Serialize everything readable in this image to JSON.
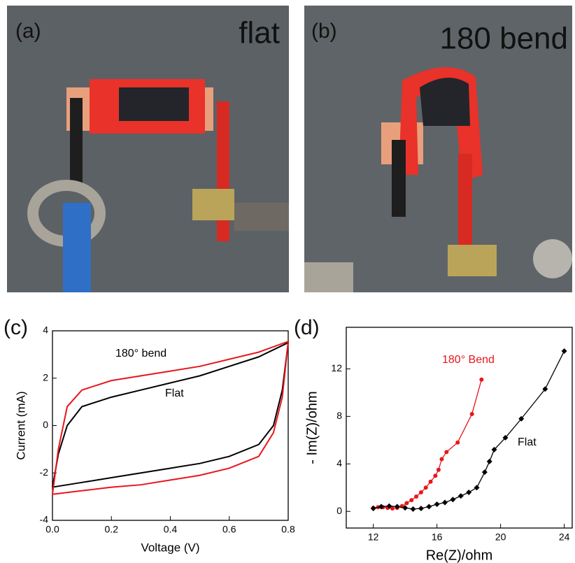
{
  "photos": [
    {
      "label": "(a)",
      "caption": "flat"
    },
    {
      "label": "(b)",
      "caption": "180 bend"
    }
  ],
  "chart_data": [
    {
      "type": "line",
      "panel_label": "(c)",
      "xlabel": "Voltage (V)",
      "ylabel": "Current (mA)",
      "xlim": [
        0,
        0.8
      ],
      "ylim": [
        -4,
        4
      ],
      "xticks": [
        {
          "value": 0,
          "label": "0.0"
        },
        0.2,
        0.4,
        0.6,
        0.8
      ],
      "yticks": [
        -4,
        -2,
        0,
        2,
        4
      ],
      "series": [
        {
          "name": "Flat",
          "color": "#000000",
          "x": [
            0,
            0.02,
            0.05,
            0.1,
            0.2,
            0.3,
            0.4,
            0.5,
            0.6,
            0.7,
            0.8,
            0.78,
            0.75,
            0.7,
            0.6,
            0.5,
            0.4,
            0.3,
            0.2,
            0.1,
            0
          ],
          "values": [
            -2.6,
            -1.2,
            0,
            0.8,
            1.2,
            1.5,
            1.8,
            2.1,
            2.5,
            2.9,
            3.5,
            1.5,
            0,
            -0.8,
            -1.3,
            -1.6,
            -1.8,
            -2,
            -2.2,
            -2.4,
            -2.6
          ]
        },
        {
          "name": "180° bend",
          "color": "#e8161b",
          "x": [
            0,
            0.02,
            0.05,
            0.1,
            0.2,
            0.3,
            0.4,
            0.5,
            0.6,
            0.7,
            0.8,
            0.78,
            0.75,
            0.7,
            0.6,
            0.5,
            0.4,
            0.3,
            0.2,
            0.1,
            0
          ],
          "values": [
            -2.9,
            -1,
            0.8,
            1.5,
            1.9,
            2.1,
            2.3,
            2.5,
            2.8,
            3.1,
            3.55,
            1.2,
            -0.3,
            -1.3,
            -1.8,
            -2.1,
            -2.3,
            -2.5,
            -2.6,
            -2.75,
            -2.9
          ]
        }
      ],
      "annotations": [
        {
          "text": "180° bend",
          "color": "#000000"
        },
        {
          "text": "Flat",
          "color": "#000000"
        }
      ]
    },
    {
      "type": "scatter-line",
      "panel_label": "(d)",
      "xlabel": "Re(Z)/ohm",
      "ylabel": "- Im(Z)/ohm",
      "xlim": [
        10.3,
        24.5
      ],
      "ylim": [
        -1.4,
        15.5
      ],
      "xticks": [
        12,
        16,
        20,
        24
      ],
      "yticks": [
        0,
        4,
        8,
        12
      ],
      "series": [
        {
          "name": "180° Bend",
          "color": "#e8161b",
          "marker": "circle",
          "x": [
            12,
            12.3,
            12.6,
            12.9,
            13.2,
            13.5,
            13.8,
            14.1,
            14.4,
            14.7,
            15,
            15.3,
            15.6,
            15.9,
            16.1,
            16.3,
            16.6,
            17.3,
            18.2,
            18.8
          ],
          "values": [
            0.3,
            0.35,
            0.35,
            0.3,
            0.25,
            0.3,
            0.45,
            0.7,
            0.95,
            1.25,
            1.6,
            2,
            2.5,
            3,
            3.5,
            4.4,
            5,
            5.8,
            8.2,
            11.1
          ]
        },
        {
          "name": "Flat",
          "color": "#000000",
          "marker": "diamond",
          "x": [
            12,
            12.5,
            13,
            13.5,
            14,
            14.5,
            15,
            15.5,
            16,
            16.5,
            17,
            17.5,
            18,
            18.5,
            19,
            19.3,
            19.6,
            20.3,
            21.3,
            22.8,
            24
          ],
          "values": [
            0.25,
            0.4,
            0.45,
            0.4,
            0.3,
            0.2,
            0.25,
            0.4,
            0.6,
            0.75,
            1,
            1.3,
            1.6,
            2,
            3.3,
            4.2,
            5.2,
            6.2,
            7.8,
            10.3,
            13.5
          ]
        }
      ],
      "annotations": [
        {
          "text": "180° Bend",
          "color": "#e8161b"
        },
        {
          "text": "Flat",
          "color": "#000000"
        }
      ]
    }
  ]
}
